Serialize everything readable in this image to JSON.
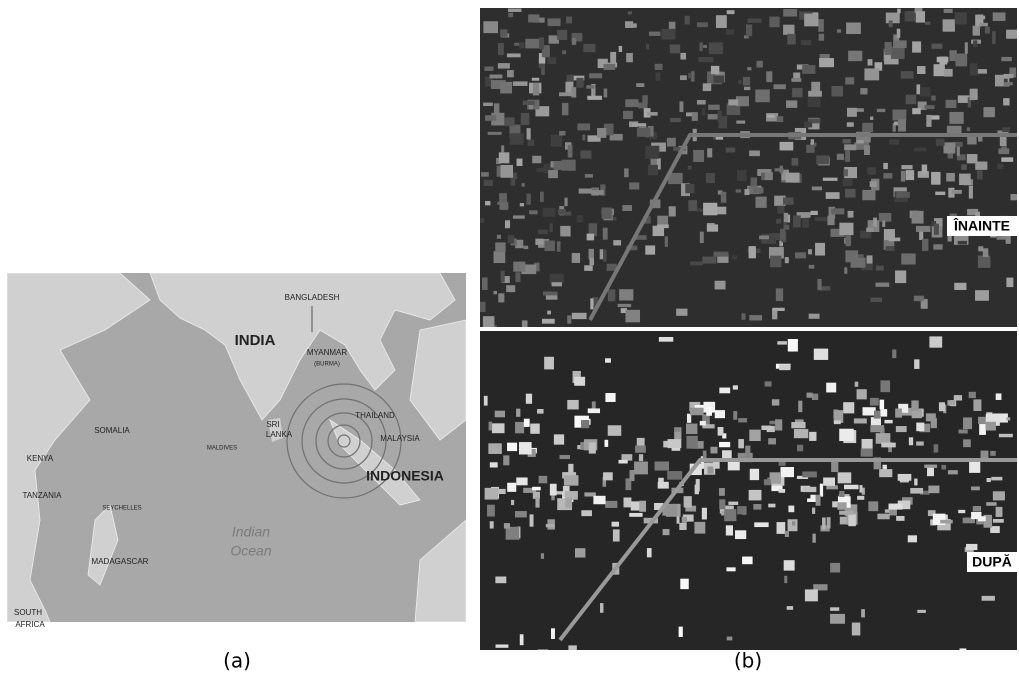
{
  "map": {
    "caption": "(a)",
    "labels": [
      "BANGLADESH",
      "INDIA",
      "MYANMAR",
      "(BURMA)",
      "SRI",
      "LANKA",
      "THAILAND",
      "MALAYSIA",
      "INDONESIA",
      "SOMALIA",
      "MALDIVES",
      "KENYA",
      "TANZANIA",
      "SEYCHELLES",
      "Indian",
      "Ocean",
      "MADAGASCAR",
      "SOUTH",
      "AFRICA"
    ]
  },
  "satellite": {
    "caption": "(b)",
    "before": "ÎNAINTE",
    "after": "DUPĂ"
  }
}
